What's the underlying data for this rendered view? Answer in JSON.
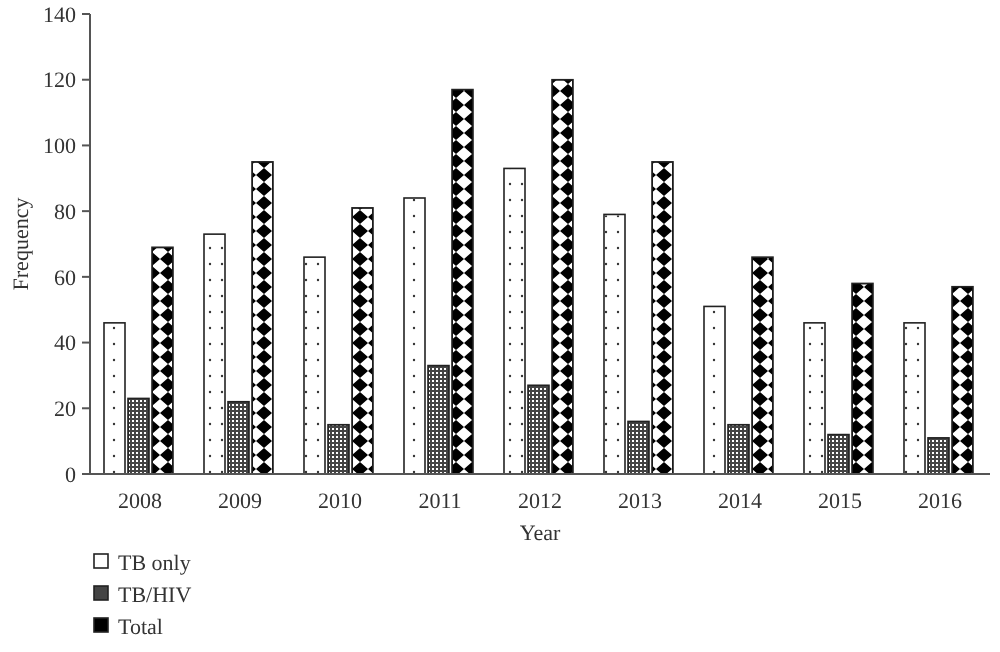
{
  "chart_data": {
    "type": "bar",
    "xlabel": "Year",
    "ylabel": "Frequency",
    "categories": [
      "2008",
      "2009",
      "2010",
      "2011",
      "2012",
      "2013",
      "2014",
      "2015",
      "2016"
    ],
    "series": [
      {
        "name": "TB only",
        "color": "#ffffff",
        "values": [
          46,
          73,
          66,
          84,
          93,
          79,
          51,
          46,
          46
        ]
      },
      {
        "name": "TB/HIV",
        "color": "#444444",
        "values": [
          23,
          22,
          15,
          33,
          27,
          16,
          15,
          12,
          11
        ]
      },
      {
        "name": "Total",
        "color": "#000000",
        "values": [
          69,
          95,
          81,
          117,
          120,
          95,
          66,
          58,
          57
        ]
      }
    ],
    "ylim": [
      0,
      140
    ],
    "yticks": [
      0,
      20,
      40,
      60,
      80,
      100,
      120,
      140
    ],
    "grid": false,
    "legend": "bottom left"
  }
}
